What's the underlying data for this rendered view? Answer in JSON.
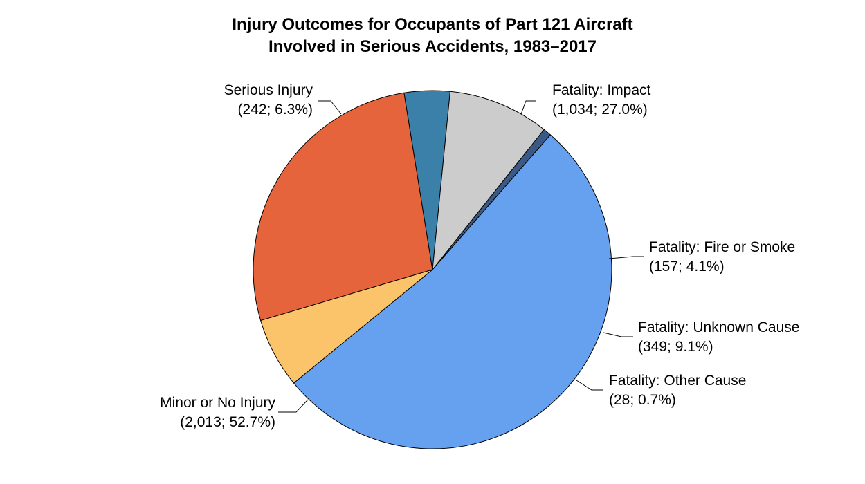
{
  "chart_data": {
    "type": "pie",
    "title": "Injury Outcomes for Occupants of Part 121 Aircraft",
    "subtitle": "Involved in Serious Accidents, 1983–2017",
    "slices": [
      {
        "label": "Fatality: Impact",
        "value": 1034,
        "percent": 27.0,
        "detail": "(1,034; 27.0%)",
        "color": "#e5643b"
      },
      {
        "label": "Fatality: Fire or Smoke",
        "value": 157,
        "percent": 4.1,
        "detail": "(157; 4.1%)",
        "color": "#3b80a8"
      },
      {
        "label": "Fatality: Unknown Cause",
        "value": 349,
        "percent": 9.1,
        "detail": "(349; 9.1%)",
        "color": "#cccccc"
      },
      {
        "label": "Fatality: Other Cause",
        "value": 28,
        "percent": 0.7,
        "detail": "(28; 0.7%)",
        "color": "#3a5a85"
      },
      {
        "label": "Minor or No Injury",
        "value": 2013,
        "percent": 52.7,
        "detail": "(2,013; 52.7%)",
        "color": "#66a1f0"
      },
      {
        "label": "Serious Injury",
        "value": 242,
        "percent": 6.3,
        "detail": "(242; 6.3%)",
        "color": "#fbc46b"
      }
    ]
  }
}
